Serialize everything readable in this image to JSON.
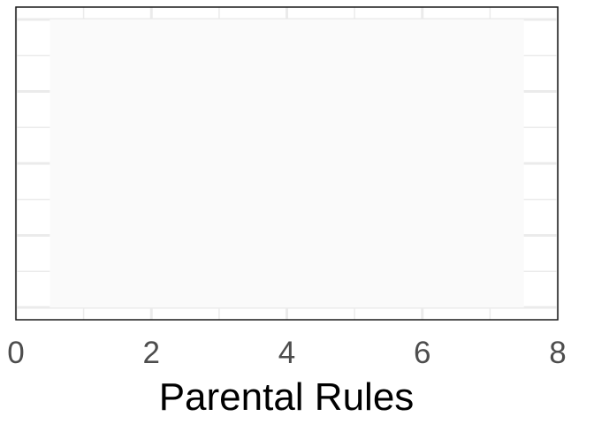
{
  "chart_data": {
    "type": "bar",
    "xlabel": "Parental Rules",
    "ylabel": "",
    "xlim": [
      0,
      8
    ],
    "x_ticks": [
      0,
      2,
      4,
      6,
      8
    ],
    "x_tick_labels": [
      "0",
      "2",
      "4",
      "6",
      "8"
    ],
    "bars": [
      {
        "start": 0.5,
        "end": 7.5
      }
    ],
    "grid": true,
    "colors": {
      "bar_fill": "#fafafa",
      "grid_line": "#ebebeb",
      "panel_border": "#1a1a1a",
      "tick_label": "#4d4d4d",
      "axis_title": "#000000"
    }
  }
}
